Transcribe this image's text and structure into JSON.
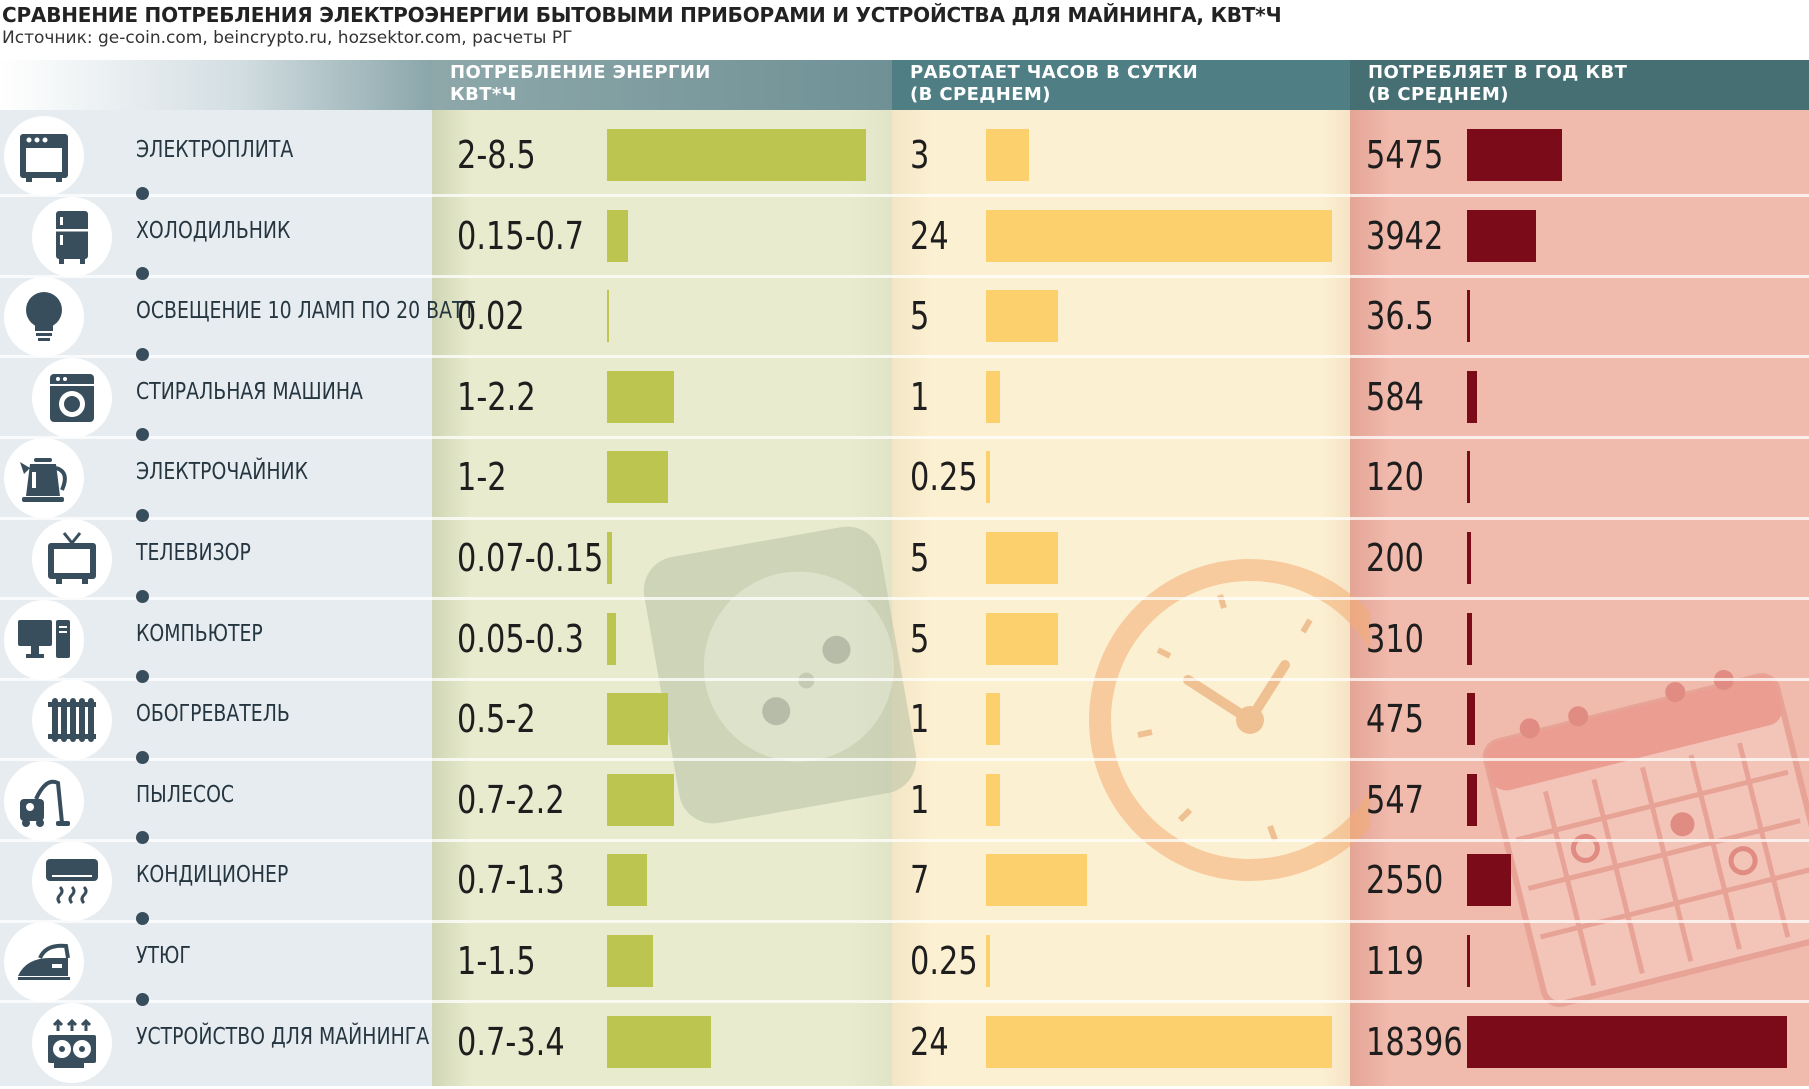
{
  "title": "СРАВНЕНИЕ ПОТРЕБЛЕНИЯ ЭЛЕКТРОЭНЕРГИИ БЫТОВЫМИ ПРИБОРАМИ И УСТРОЙСТВА ДЛЯ МАЙНИНГА, КВТ*Ч",
  "subtitle": "Источник: ge-coin.com, beincrypto.ru, hozsektor.com, расчеты РГ",
  "headers": {
    "power": [
      "ПОТРЕБЛЕНИЕ ЭНЕРГИИ",
      "КВТ*Ч"
    ],
    "hours": [
      "РАБОТАЕТ ЧАСОВ В СУТКИ",
      "(В СРЕДНЕМ)"
    ],
    "year": [
      "ПОТРЕБЛЯЕТ В ГОД КВТ",
      "(В СРЕДНЕМ)"
    ]
  },
  "colors": {
    "header_power": "#7f9c9d",
    "header_hours": "#4f7f84",
    "header_year": "#466f74",
    "bar_power": "#bcc54f",
    "bar_hours": "#fdd06e",
    "bar_year": "#7c0b1a",
    "icon": "#394e5c"
  },
  "chart_data": {
    "type": "bar",
    "categories": [
      "ЭЛЕКТРОПЛИТА",
      "ХОЛОДИЛЬНИК",
      "ОСВЕЩЕНИЕ 10 ЛАМП ПО 20 ВАТТ",
      "СТИРАЛЬНАЯ МАШИНА",
      "ЭЛЕКТРОЧАЙНИК",
      "ТЕЛЕВИЗОР",
      "КОМПЬЮТЕР",
      "ОБОГРЕВАТЕЛЬ",
      "ПЫЛЕСОС",
      "КОНДИЦИОНЕР",
      "УТЮГ",
      "УСТРОЙСТВО ДЛЯ МАЙНИНГА"
    ],
    "icons": [
      "stove-icon",
      "fridge-icon",
      "lightbulb-icon",
      "washing-machine-icon",
      "kettle-icon",
      "tv-icon",
      "computer-icon",
      "heater-icon",
      "vacuum-icon",
      "air-conditioner-icon",
      "iron-icon",
      "mining-rig-icon"
    ],
    "power_labels": [
      "2-8.5",
      "0.15-0.7",
      "0.02",
      "1-2.2",
      "1-2",
      "0.07-0.15",
      "0.05-0.3",
      "0.5-2",
      "0.7-2.2",
      "0.7-1.3",
      "1-1.5",
      "0.7-3.4"
    ],
    "power_max": [
      8.5,
      0.7,
      0.02,
      2.2,
      2,
      0.15,
      0.3,
      2,
      2.2,
      1.3,
      1.5,
      3.4
    ],
    "hours_labels": [
      "3",
      "24",
      "5",
      "1",
      "0.25",
      "5",
      "5",
      "1",
      "1",
      "7",
      "0.25",
      "24"
    ],
    "hours": [
      3,
      24,
      5,
      1,
      0.25,
      5,
      5,
      1,
      1,
      7,
      0.25,
      24
    ],
    "year_labels": [
      "5475",
      "3942",
      "36.5",
      "584",
      "120",
      "200",
      "310",
      "475",
      "547",
      "2550",
      "119",
      "18396"
    ],
    "year_kwh": [
      5475,
      3942,
      36.5,
      584,
      120,
      200,
      310,
      475,
      547,
      2550,
      119,
      18396
    ]
  }
}
